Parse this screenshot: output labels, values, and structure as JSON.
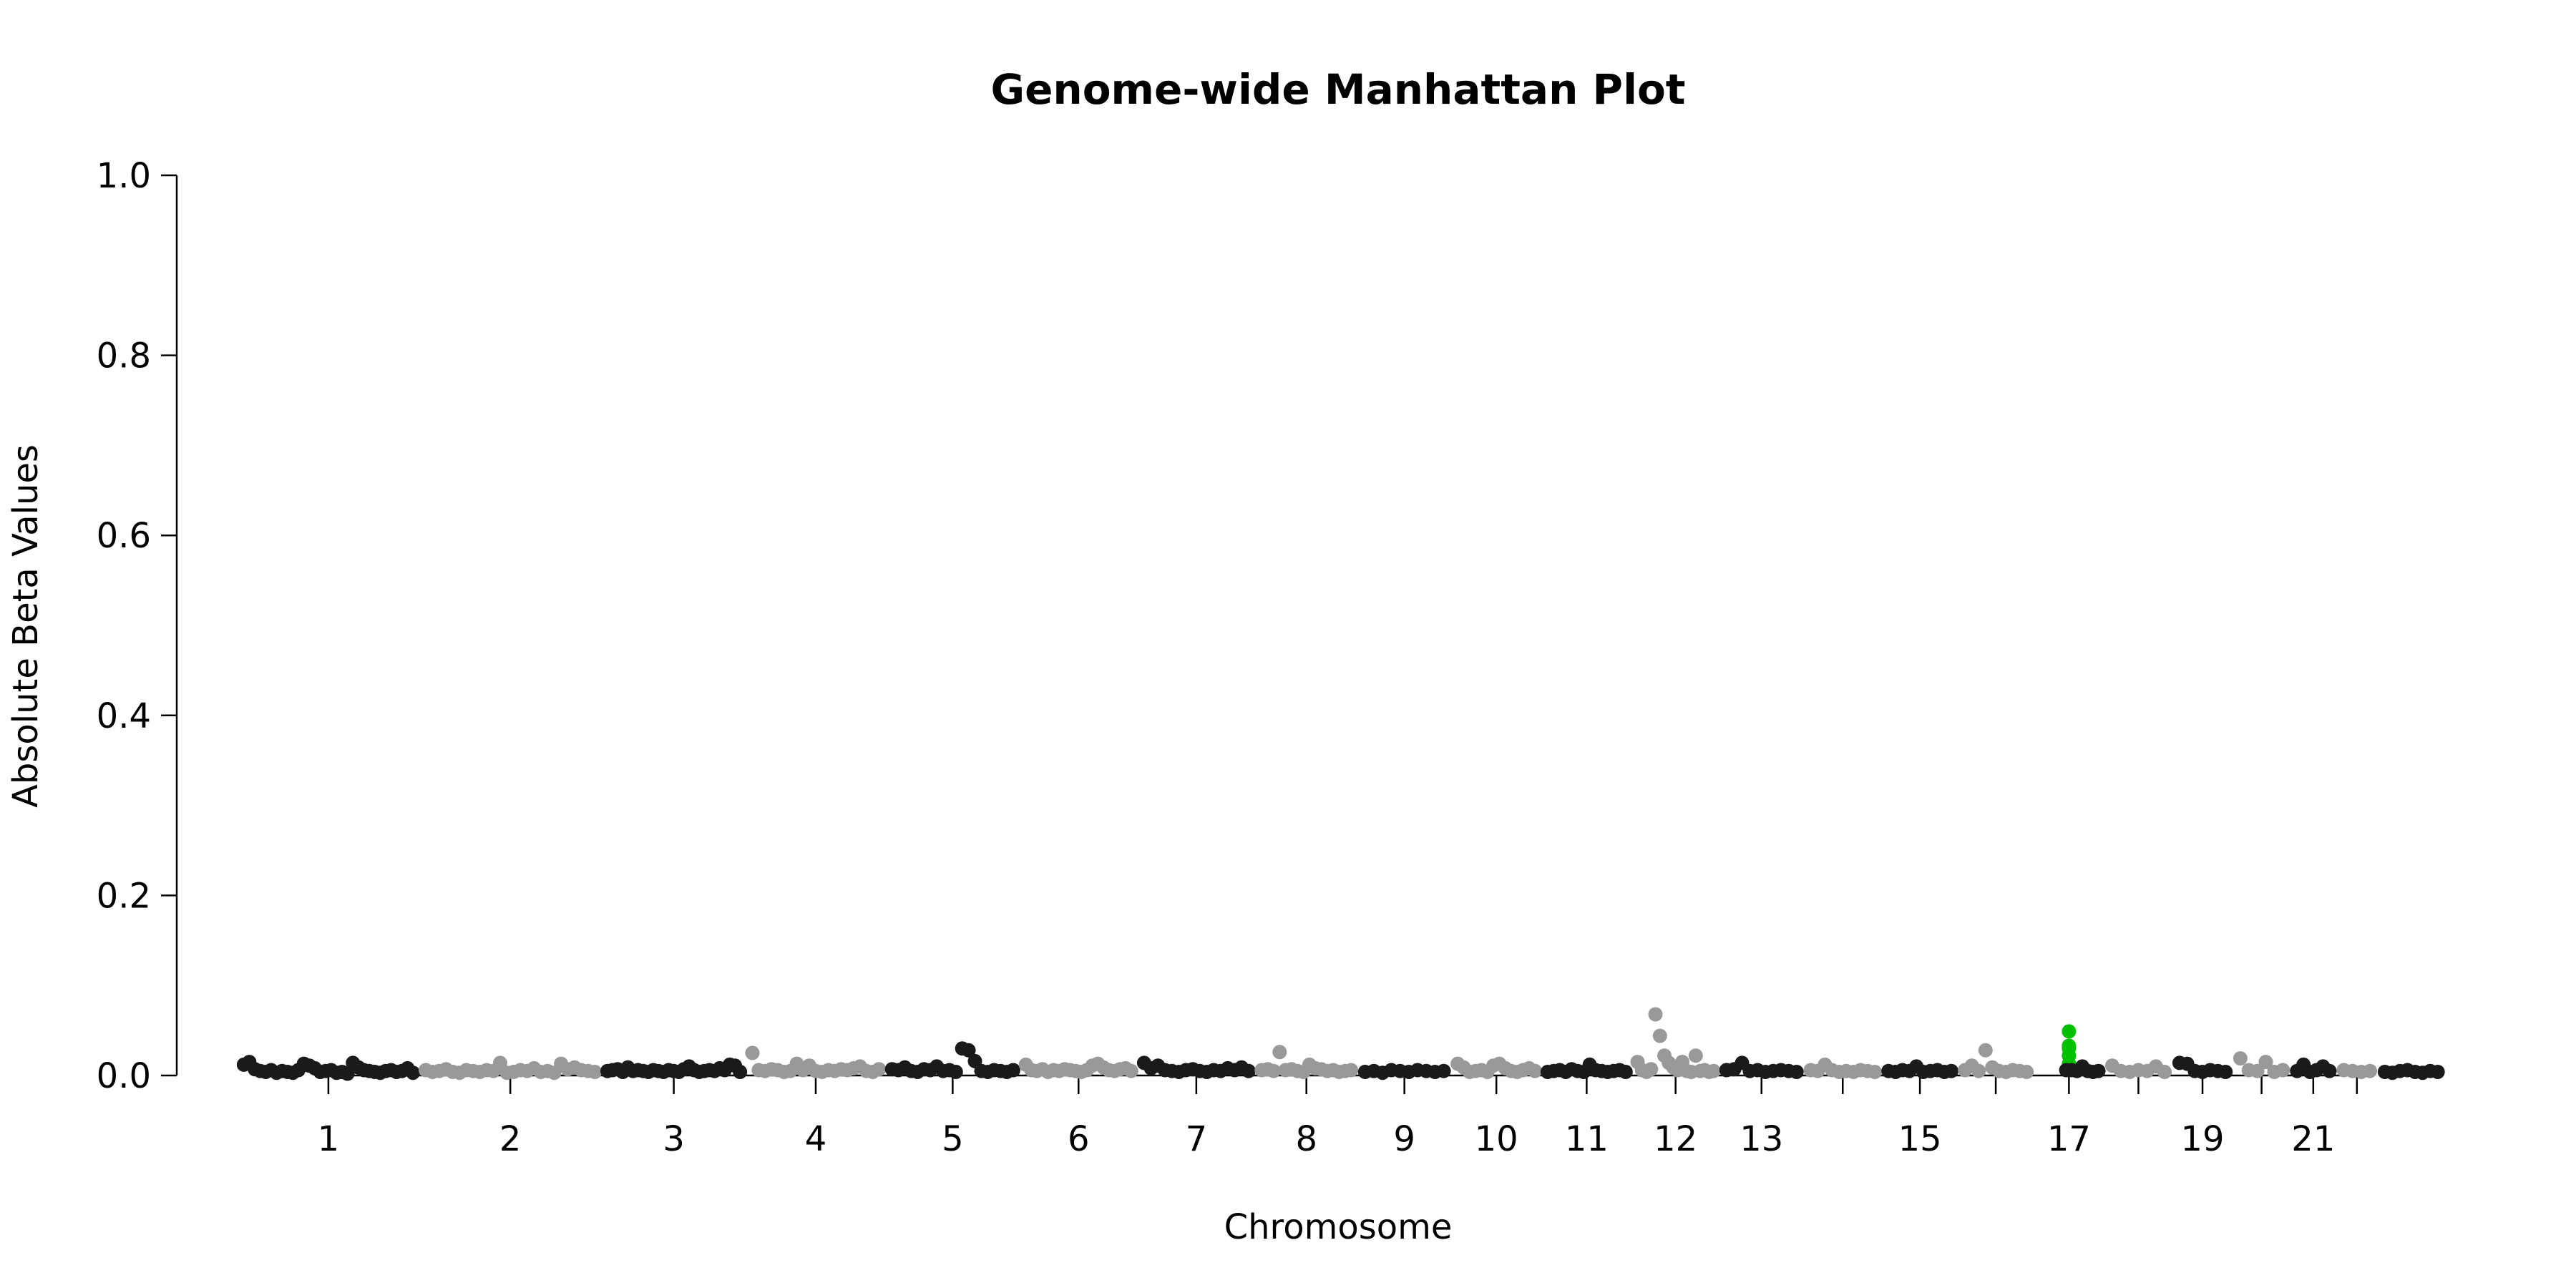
{
  "chart_data": {
    "type": "scatter",
    "title": "Genome-wide Manhattan Plot",
    "xlabel": "Chromosome",
    "ylabel": "Absolute Beta Values",
    "ylim": [
      0,
      1.0
    ],
    "y_ticks": [
      "0.0",
      "0.2",
      "0.4",
      "0.6",
      "0.8",
      "1.0"
    ],
    "x_tick_labels": [
      "1",
      "2",
      "3",
      "4",
      "5",
      "6",
      "7",
      "8",
      "9",
      "10",
      "11",
      "12",
      "13",
      "15",
      "17",
      "19",
      "21"
    ],
    "grid": false,
    "legend": "none",
    "colors": {
      "odd_chromosomes": "#1a1a1a",
      "even_chromosomes": "#999999",
      "highlight": "#00c000"
    },
    "chromosomes": [
      "1",
      "2",
      "3",
      "4",
      "5",
      "6",
      "7",
      "8",
      "9",
      "10",
      "11",
      "12",
      "13",
      "14",
      "15",
      "16",
      "17",
      "18",
      "19",
      "20",
      "21",
      "22",
      "23"
    ],
    "highlighted_chromosome": "17",
    "series": [
      {
        "chromosome": "1",
        "values": [
          0.012,
          0.015,
          0.007,
          0.005,
          0.004,
          0.006,
          0.003,
          0.005,
          0.004,
          0.003,
          0.006,
          0.013,
          0.011,
          0.008,
          0.004,
          0.005,
          0.006,
          0.003,
          0.004,
          0.002,
          0.014,
          0.009,
          0.006,
          0.005,
          0.004,
          0.003,
          0.005,
          0.006,
          0.004,
          0.005,
          0.008,
          0.003
        ]
      },
      {
        "chromosome": "2",
        "values": [
          0.006,
          0.004,
          0.005,
          0.007,
          0.004,
          0.003,
          0.006,
          0.005,
          0.004,
          0.006,
          0.005,
          0.014,
          0.003,
          0.004,
          0.006,
          0.005,
          0.008,
          0.004,
          0.005,
          0.003,
          0.013,
          0.007,
          0.009,
          0.006,
          0.005,
          0.004
        ]
      },
      {
        "chromosome": "3",
        "values": [
          0.005,
          0.006,
          0.007,
          0.004,
          0.009,
          0.005,
          0.006,
          0.005,
          0.004,
          0.006,
          0.005,
          0.004,
          0.006,
          0.005,
          0.004,
          0.007,
          0.01,
          0.006,
          0.004,
          0.005,
          0.006,
          0.005,
          0.008,
          0.006,
          0.012,
          0.011,
          0.004
        ]
      },
      {
        "chromosome": "4",
        "values": [
          0.025,
          0.006,
          0.005,
          0.007,
          0.006,
          0.004,
          0.005,
          0.013,
          0.006,
          0.011,
          0.005,
          0.004,
          0.006,
          0.005,
          0.007,
          0.006,
          0.008,
          0.01,
          0.005,
          0.004,
          0.007
        ]
      },
      {
        "chromosome": "5",
        "values": [
          0.007,
          0.006,
          0.009,
          0.005,
          0.004,
          0.007,
          0.006,
          0.01,
          0.005,
          0.006,
          0.004,
          0.03,
          0.028,
          0.016,
          0.005,
          0.004,
          0.006,
          0.005,
          0.004,
          0.006
        ]
      },
      {
        "chromosome": "6",
        "values": [
          0.012,
          0.006,
          0.005,
          0.007,
          0.004,
          0.006,
          0.005,
          0.007,
          0.006,
          0.005,
          0.004,
          0.006,
          0.011,
          0.013,
          0.009,
          0.006,
          0.005,
          0.007,
          0.008,
          0.005
        ]
      },
      {
        "chromosome": "7",
        "values": [
          0.014,
          0.008,
          0.011,
          0.006,
          0.005,
          0.004,
          0.006,
          0.007,
          0.005,
          0.004,
          0.006,
          0.005,
          0.008,
          0.006,
          0.009,
          0.005
        ]
      },
      {
        "chromosome": "8",
        "values": [
          0.006,
          0.007,
          0.005,
          0.026,
          0.006,
          0.007,
          0.005,
          0.004,
          0.012,
          0.008,
          0.007,
          0.005,
          0.006,
          0.004,
          0.005,
          0.006
        ]
      },
      {
        "chromosome": "9",
        "values": [
          0.004,
          0.005,
          0.003,
          0.006,
          0.005,
          0.004,
          0.006,
          0.005,
          0.004,
          0.005
        ]
      },
      {
        "chromosome": "10",
        "values": [
          0.013,
          0.009,
          0.004,
          0.005,
          0.006,
          0.004,
          0.011,
          0.013,
          0.008,
          0.005,
          0.004,
          0.006,
          0.008,
          0.005
        ]
      },
      {
        "chromosome": "11",
        "values": [
          0.004,
          0.005,
          0.006,
          0.004,
          0.007,
          0.005,
          0.004,
          0.012,
          0.006,
          0.005,
          0.004,
          0.005,
          0.006,
          0.004
        ]
      },
      {
        "chromosome": "12",
        "values": [
          0.015,
          0.006,
          0.004,
          0.007,
          0.068,
          0.044,
          0.022,
          0.014,
          0.009,
          0.006,
          0.015,
          0.005,
          0.004,
          0.022,
          0.005,
          0.006,
          0.004,
          0.005
        ]
      },
      {
        "chromosome": "13",
        "values": [
          0.006,
          0.007,
          0.014,
          0.005,
          0.006,
          0.004,
          0.005,
          0.006,
          0.005,
          0.004
        ]
      },
      {
        "chromosome": "14",
        "values": [
          0.006,
          0.005,
          0.012,
          0.006,
          0.004,
          0.005,
          0.004,
          0.006,
          0.005,
          0.004
        ]
      },
      {
        "chromosome": "15",
        "values": [
          0.005,
          0.004,
          0.006,
          0.005,
          0.01,
          0.004,
          0.005,
          0.006,
          0.004,
          0.005
        ]
      },
      {
        "chromosome": "16",
        "values": [
          0.006,
          0.011,
          0.005,
          0.028,
          0.009,
          0.005,
          0.004,
          0.006,
          0.005,
          0.004
        ]
      },
      {
        "chromosome": "17",
        "values": [
          0.049,
          0.033,
          0.03,
          0.022,
          0.013,
          0.006,
          0.006,
          0.005,
          0.01,
          0.005,
          0.004,
          0.005
        ]
      },
      {
        "chromosome": "18",
        "values": [
          0.011,
          0.005,
          0.004,
          0.006,
          0.005,
          0.01,
          0.004
        ]
      },
      {
        "chromosome": "19",
        "values": [
          0.014,
          0.013,
          0.005,
          0.004,
          0.006,
          0.005,
          0.004
        ]
      },
      {
        "chromosome": "20",
        "values": [
          0.019,
          0.006,
          0.005,
          0.015,
          0.004,
          0.006
        ]
      },
      {
        "chromosome": "21",
        "values": [
          0.005,
          0.012,
          0.004,
          0.006,
          0.01,
          0.005
        ]
      },
      {
        "chromosome": "22",
        "values": [
          0.006,
          0.005,
          0.004,
          0.005
        ]
      },
      {
        "chromosome": "23",
        "values": [
          0.004,
          0.003,
          0.005,
          0.006,
          0.004,
          0.003,
          0.005,
          0.004
        ]
      }
    ]
  }
}
